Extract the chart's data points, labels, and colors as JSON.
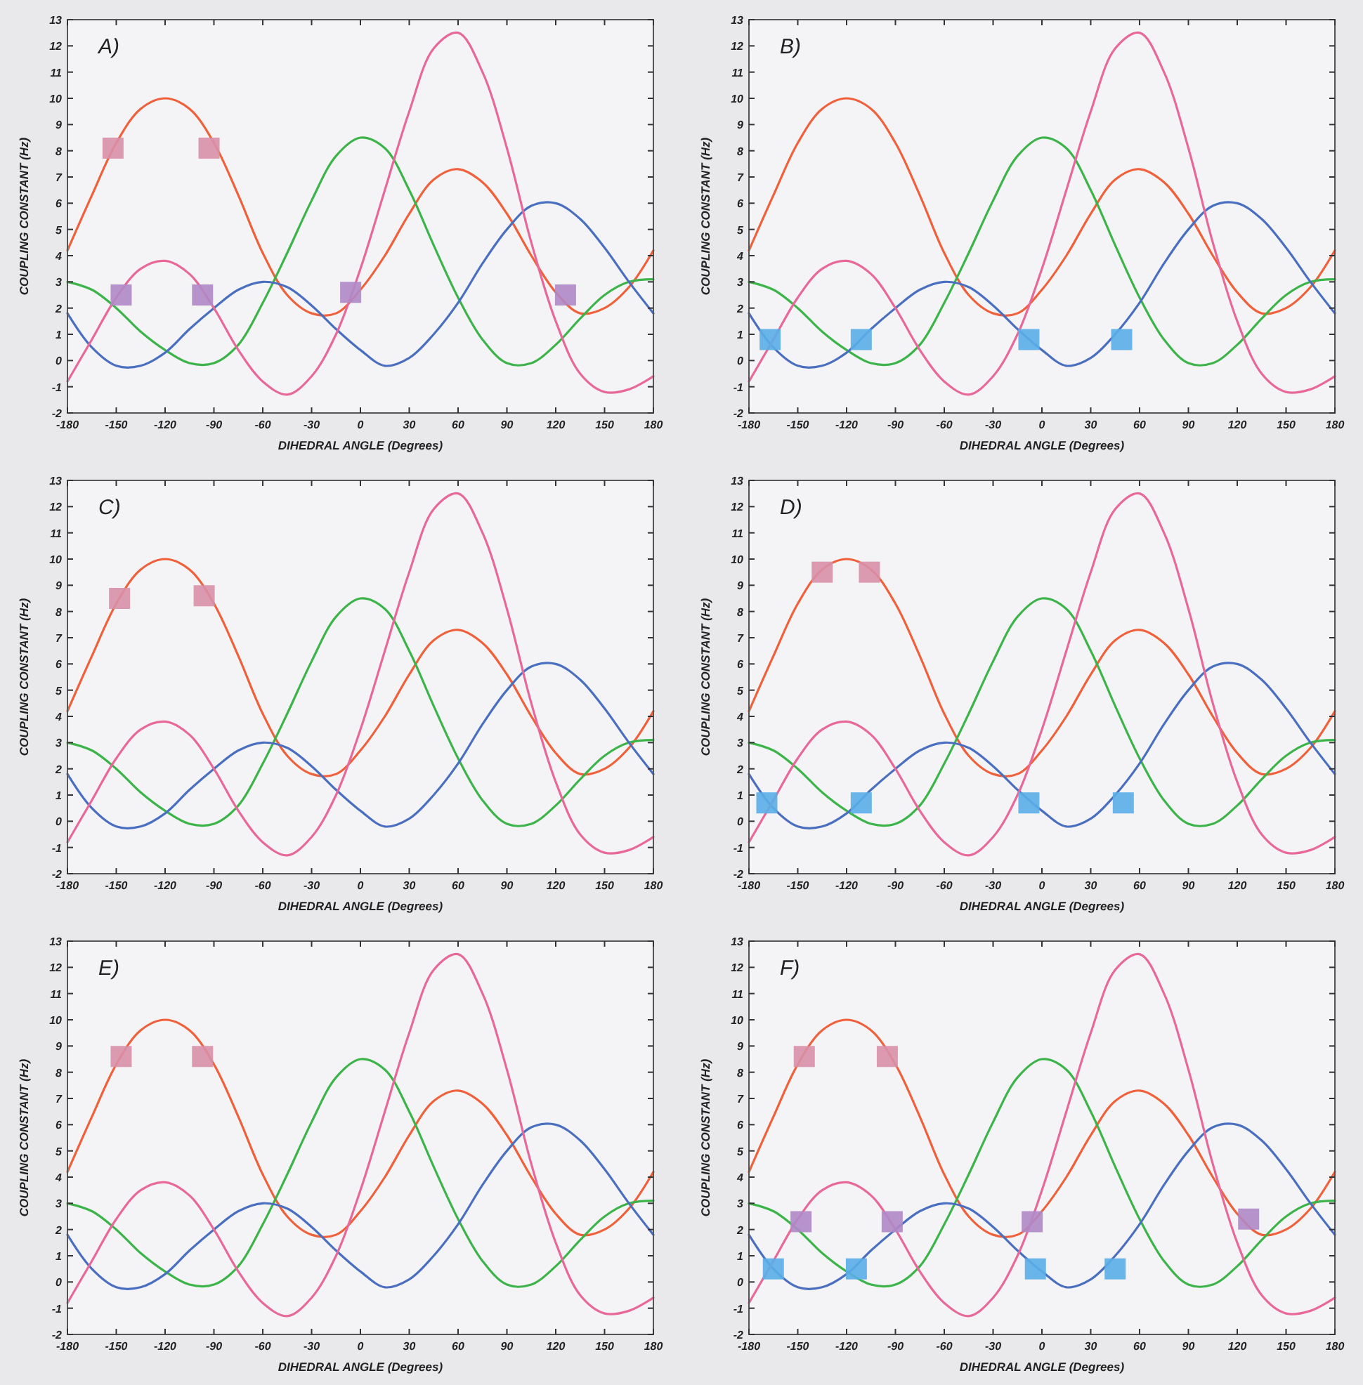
{
  "chart_data": [
    {
      "type": "line",
      "title": "A)",
      "xlabel": "DIHEDRAL ANGLE (Degrees)",
      "ylabel": "COUPLING CONSTANT (Hz)",
      "xlim": [
        -180,
        180
      ],
      "xticks": [
        -180,
        -150,
        -120,
        -90,
        -60,
        -30,
        0,
        30,
        60,
        90,
        120,
        150,
        180
      ],
      "ylim": [
        -2,
        13
      ],
      "yticks": [
        -2,
        -1,
        0,
        1,
        2,
        3,
        4,
        5,
        6,
        7,
        8,
        9,
        10,
        11,
        12,
        13
      ],
      "x": [
        -180,
        -165,
        -150,
        -135,
        -120,
        -105,
        -90,
        -75,
        -60,
        -45,
        -30,
        -15,
        0,
        15,
        30,
        45,
        60,
        75,
        90,
        105,
        120,
        135,
        150,
        165,
        180
      ],
      "series": [
        {
          "color": "#f0603a",
          "values": [
            4.2,
            6.3,
            8.3,
            9.6,
            10,
            9.6,
            8.3,
            6.3,
            4.1,
            2.5,
            1.8,
            1.8,
            2.7,
            4.0,
            5.6,
            6.9,
            7.3,
            6.8,
            5.6,
            4.0,
            2.6,
            1.8,
            2.0,
            2.8,
            4.2
          ]
        },
        {
          "color": "#3cb44a",
          "values": [
            3.0,
            2.7,
            2.0,
            1.1,
            0.4,
            -0.1,
            -0.1,
            0.6,
            2.2,
            4.1,
            6.1,
            7.8,
            8.5,
            8.1,
            6.5,
            4.4,
            2.4,
            0.8,
            -0.1,
            -0.1,
            0.6,
            1.6,
            2.5,
            3.0,
            3.1
          ]
        },
        {
          "color": "#4a6fc0",
          "values": [
            1.8,
            0.5,
            -0.2,
            -0.2,
            0.3,
            1.2,
            2.0,
            2.7,
            3.0,
            2.8,
            2.1,
            1.2,
            0.4,
            -0.2,
            0.1,
            1.0,
            2.2,
            3.7,
            5.0,
            5.9,
            6.0,
            5.4,
            4.3,
            3.0,
            1.8
          ]
        },
        {
          "color": "#e8689a",
          "values": [
            -0.8,
            0.8,
            2.4,
            3.5,
            3.8,
            3.3,
            2.0,
            0.4,
            -0.8,
            -1.3,
            -0.6,
            1.0,
            3.5,
            6.5,
            9.5,
            11.9,
            12.5,
            11.0,
            8.1,
            4.5,
            1.5,
            -0.5,
            -1.2,
            -1.1,
            -0.6
          ]
        },
        {
          "type": "scatter",
          "marker": "square",
          "color": "#d890a8",
          "x": [
            -152,
            -93
          ],
          "values": [
            8.1,
            8.1
          ]
        },
        {
          "type": "scatter",
          "marker": "square",
          "color": "#b088c8",
          "x": [
            -147,
            -97,
            -6,
            126
          ],
          "values": [
            2.5,
            2.5,
            2.6,
            2.5
          ]
        }
      ]
    },
    {
      "type": "line",
      "title": "B)",
      "xlabel": "DIHEDRAL ANGLE (Degrees)",
      "ylabel": "COUPLING CONSTANT (Hz)",
      "xlim": [
        -180,
        180
      ],
      "xticks": [
        -180,
        -150,
        -120,
        -90,
        -60,
        -30,
        0,
        30,
        60,
        90,
        120,
        150,
        180
      ],
      "ylim": [
        -2,
        13
      ],
      "yticks": [
        -2,
        -1,
        0,
        1,
        2,
        3,
        4,
        5,
        6,
        7,
        8,
        9,
        10,
        11,
        12,
        13
      ],
      "x": [
        -180,
        -165,
        -150,
        -135,
        -120,
        -105,
        -90,
        -75,
        -60,
        -45,
        -30,
        -15,
        0,
        15,
        30,
        45,
        60,
        75,
        90,
        105,
        120,
        135,
        150,
        165,
        180
      ],
      "series": [
        {
          "color": "#f0603a",
          "values": [
            4.2,
            6.3,
            8.3,
            9.6,
            10,
            9.6,
            8.3,
            6.3,
            4.1,
            2.5,
            1.8,
            1.8,
            2.7,
            4.0,
            5.6,
            6.9,
            7.3,
            6.8,
            5.6,
            4.0,
            2.6,
            1.8,
            2.0,
            2.8,
            4.2
          ]
        },
        {
          "color": "#3cb44a",
          "values": [
            3.0,
            2.7,
            2.0,
            1.1,
            0.4,
            -0.1,
            -0.1,
            0.6,
            2.2,
            4.1,
            6.1,
            7.8,
            8.5,
            8.1,
            6.5,
            4.4,
            2.4,
            0.8,
            -0.1,
            -0.1,
            0.6,
            1.6,
            2.5,
            3.0,
            3.1
          ]
        },
        {
          "color": "#4a6fc0",
          "values": [
            1.8,
            0.5,
            -0.2,
            -0.2,
            0.3,
            1.2,
            2.0,
            2.7,
            3.0,
            2.8,
            2.1,
            1.2,
            0.4,
            -0.2,
            0.1,
            1.0,
            2.2,
            3.7,
            5.0,
            5.9,
            6.0,
            5.4,
            4.3,
            3.0,
            1.8
          ]
        },
        {
          "color": "#e8689a",
          "values": [
            -0.8,
            0.8,
            2.4,
            3.5,
            3.8,
            3.3,
            2.0,
            0.4,
            -0.8,
            -1.3,
            -0.6,
            1.0,
            3.5,
            6.5,
            9.5,
            11.9,
            12.5,
            11.0,
            8.1,
            4.5,
            1.5,
            -0.5,
            -1.2,
            -1.1,
            -0.6
          ]
        },
        {
          "type": "scatter",
          "marker": "square",
          "color": "#5aaee8",
          "x": [
            -167,
            -111,
            -8,
            49
          ],
          "values": [
            0.8,
            0.8,
            0.8,
            0.8
          ]
        }
      ]
    },
    {
      "type": "line",
      "title": "C)",
      "xlabel": "DIHEDRAL ANGLE (Degrees)",
      "ylabel": "COUPLING CONSTANT (Hz)",
      "xlim": [
        -180,
        180
      ],
      "xticks": [
        -180,
        -150,
        -120,
        -90,
        -60,
        -30,
        0,
        30,
        60,
        90,
        120,
        150,
        180
      ],
      "ylim": [
        -2,
        13
      ],
      "yticks": [
        -2,
        -1,
        0,
        1,
        2,
        3,
        4,
        5,
        6,
        7,
        8,
        9,
        10,
        11,
        12,
        13
      ],
      "x": [
        -180,
        -165,
        -150,
        -135,
        -120,
        -105,
        -90,
        -75,
        -60,
        -45,
        -30,
        -15,
        0,
        15,
        30,
        45,
        60,
        75,
        90,
        105,
        120,
        135,
        150,
        165,
        180
      ],
      "series": [
        {
          "color": "#f0603a",
          "values": [
            4.2,
            6.3,
            8.3,
            9.6,
            10,
            9.6,
            8.3,
            6.3,
            4.1,
            2.5,
            1.8,
            1.8,
            2.7,
            4.0,
            5.6,
            6.9,
            7.3,
            6.8,
            5.6,
            4.0,
            2.6,
            1.8,
            2.0,
            2.8,
            4.2
          ]
        },
        {
          "color": "#3cb44a",
          "values": [
            3.0,
            2.7,
            2.0,
            1.1,
            0.4,
            -0.1,
            -0.1,
            0.6,
            2.2,
            4.1,
            6.1,
            7.8,
            8.5,
            8.1,
            6.5,
            4.4,
            2.4,
            0.8,
            -0.1,
            -0.1,
            0.6,
            1.6,
            2.5,
            3.0,
            3.1
          ]
        },
        {
          "color": "#4a6fc0",
          "values": [
            1.8,
            0.5,
            -0.2,
            -0.2,
            0.3,
            1.2,
            2.0,
            2.7,
            3.0,
            2.8,
            2.1,
            1.2,
            0.4,
            -0.2,
            0.1,
            1.0,
            2.2,
            3.7,
            5.0,
            5.9,
            6.0,
            5.4,
            4.3,
            3.0,
            1.8
          ]
        },
        {
          "color": "#e8689a",
          "values": [
            -0.8,
            0.8,
            2.4,
            3.5,
            3.8,
            3.3,
            2.0,
            0.4,
            -0.8,
            -1.3,
            -0.6,
            1.0,
            3.5,
            6.5,
            9.5,
            11.9,
            12.5,
            11.0,
            8.1,
            4.5,
            1.5,
            -0.5,
            -1.2,
            -1.1,
            -0.6
          ]
        },
        {
          "type": "scatter",
          "marker": "square",
          "color": "#d890a8",
          "x": [
            -148,
            -96
          ],
          "values": [
            8.5,
            8.6
          ]
        }
      ]
    },
    {
      "type": "line",
      "title": "D)",
      "xlabel": "DIHEDRAL ANGLE (Degrees)",
      "ylabel": "COUPLING CONSTANT (Hz)",
      "xlim": [
        -180,
        180
      ],
      "xticks": [
        -180,
        -150,
        -120,
        -90,
        -60,
        -30,
        0,
        30,
        60,
        90,
        120,
        150,
        180
      ],
      "ylim": [
        -2,
        13
      ],
      "yticks": [
        -2,
        -1,
        0,
        1,
        2,
        3,
        4,
        5,
        6,
        7,
        8,
        9,
        10,
        11,
        12,
        13
      ],
      "x": [
        -180,
        -165,
        -150,
        -135,
        -120,
        -105,
        -90,
        -75,
        -60,
        -45,
        -30,
        -15,
        0,
        15,
        30,
        45,
        60,
        75,
        90,
        105,
        120,
        135,
        150,
        165,
        180
      ],
      "series": [
        {
          "color": "#f0603a",
          "values": [
            4.2,
            6.3,
            8.3,
            9.6,
            10,
            9.6,
            8.3,
            6.3,
            4.1,
            2.5,
            1.8,
            1.8,
            2.7,
            4.0,
            5.6,
            6.9,
            7.3,
            6.8,
            5.6,
            4.0,
            2.6,
            1.8,
            2.0,
            2.8,
            4.2
          ]
        },
        {
          "color": "#3cb44a",
          "values": [
            3.0,
            2.7,
            2.0,
            1.1,
            0.4,
            -0.1,
            -0.1,
            0.6,
            2.2,
            4.1,
            6.1,
            7.8,
            8.5,
            8.1,
            6.5,
            4.4,
            2.4,
            0.8,
            -0.1,
            -0.1,
            0.6,
            1.6,
            2.5,
            3.0,
            3.1
          ]
        },
        {
          "color": "#4a6fc0",
          "values": [
            1.8,
            0.5,
            -0.2,
            -0.2,
            0.3,
            1.2,
            2.0,
            2.7,
            3.0,
            2.8,
            2.1,
            1.2,
            0.4,
            -0.2,
            0.1,
            1.0,
            2.2,
            3.7,
            5.0,
            5.9,
            6.0,
            5.4,
            4.3,
            3.0,
            1.8
          ]
        },
        {
          "color": "#e8689a",
          "values": [
            -0.8,
            0.8,
            2.4,
            3.5,
            3.8,
            3.3,
            2.0,
            0.4,
            -0.8,
            -1.3,
            -0.6,
            1.0,
            3.5,
            6.5,
            9.5,
            11.9,
            12.5,
            11.0,
            8.1,
            4.5,
            1.5,
            -0.5,
            -1.2,
            -1.1,
            -0.6
          ]
        },
        {
          "type": "scatter",
          "marker": "square",
          "color": "#d890a8",
          "x": [
            -135,
            -106
          ],
          "values": [
            9.5,
            9.5
          ]
        },
        {
          "type": "scatter",
          "marker": "square",
          "color": "#5aaee8",
          "x": [
            -169,
            -111,
            -8,
            50
          ],
          "values": [
            0.7,
            0.7,
            0.7,
            0.7
          ]
        }
      ]
    },
    {
      "type": "line",
      "title": "E)",
      "xlabel": "DIHEDRAL ANGLE (Degrees)",
      "ylabel": "COUPLING CONSTANT (Hz)",
      "xlim": [
        -180,
        180
      ],
      "xticks": [
        -180,
        -150,
        -120,
        -90,
        -60,
        -30,
        0,
        30,
        60,
        90,
        120,
        150,
        180
      ],
      "ylim": [
        -2,
        13
      ],
      "yticks": [
        -2,
        -1,
        0,
        1,
        2,
        3,
        4,
        5,
        6,
        7,
        8,
        9,
        10,
        11,
        12,
        13
      ],
      "x": [
        -180,
        -165,
        -150,
        -135,
        -120,
        -105,
        -90,
        -75,
        -60,
        -45,
        -30,
        -15,
        0,
        15,
        30,
        45,
        60,
        75,
        90,
        105,
        120,
        135,
        150,
        165,
        180
      ],
      "series": [
        {
          "color": "#f0603a",
          "values": [
            4.2,
            6.3,
            8.3,
            9.6,
            10,
            9.6,
            8.3,
            6.3,
            4.1,
            2.5,
            1.8,
            1.8,
            2.7,
            4.0,
            5.6,
            6.9,
            7.3,
            6.8,
            5.6,
            4.0,
            2.6,
            1.8,
            2.0,
            2.8,
            4.2
          ]
        },
        {
          "color": "#3cb44a",
          "values": [
            3.0,
            2.7,
            2.0,
            1.1,
            0.4,
            -0.1,
            -0.1,
            0.6,
            2.2,
            4.1,
            6.1,
            7.8,
            8.5,
            8.1,
            6.5,
            4.4,
            2.4,
            0.8,
            -0.1,
            -0.1,
            0.6,
            1.6,
            2.5,
            3.0,
            3.1
          ]
        },
        {
          "color": "#4a6fc0",
          "values": [
            1.8,
            0.5,
            -0.2,
            -0.2,
            0.3,
            1.2,
            2.0,
            2.7,
            3.0,
            2.8,
            2.1,
            1.2,
            0.4,
            -0.2,
            0.1,
            1.0,
            2.2,
            3.7,
            5.0,
            5.9,
            6.0,
            5.4,
            4.3,
            3.0,
            1.8
          ]
        },
        {
          "color": "#e8689a",
          "values": [
            -0.8,
            0.8,
            2.4,
            3.5,
            3.8,
            3.3,
            2.0,
            0.4,
            -0.8,
            -1.3,
            -0.6,
            1.0,
            3.5,
            6.5,
            9.5,
            11.9,
            12.5,
            11.0,
            8.1,
            4.5,
            1.5,
            -0.5,
            -1.2,
            -1.1,
            -0.6
          ]
        },
        {
          "type": "scatter",
          "marker": "square",
          "color": "#d890a8",
          "x": [
            -147,
            -97
          ],
          "values": [
            8.6,
            8.6
          ]
        }
      ]
    },
    {
      "type": "line",
      "title": "F)",
      "xlabel": "DIHEDRAL ANGLE (Degrees)",
      "ylabel": "COUPLING CONSTANT (Hz)",
      "xlim": [
        -180,
        180
      ],
      "xticks": [
        -180,
        -150,
        -120,
        -90,
        -60,
        -30,
        0,
        30,
        60,
        90,
        120,
        150,
        180
      ],
      "ylim": [
        -2,
        13
      ],
      "yticks": [
        -2,
        -1,
        0,
        1,
        2,
        3,
        4,
        5,
        6,
        7,
        8,
        9,
        10,
        11,
        12,
        13
      ],
      "x": [
        -180,
        -165,
        -150,
        -135,
        -120,
        -105,
        -90,
        -75,
        -60,
        -45,
        -30,
        -15,
        0,
        15,
        30,
        45,
        60,
        75,
        90,
        105,
        120,
        135,
        150,
        165,
        180
      ],
      "series": [
        {
          "color": "#f0603a",
          "values": [
            4.2,
            6.3,
            8.3,
            9.6,
            10,
            9.6,
            8.3,
            6.3,
            4.1,
            2.5,
            1.8,
            1.8,
            2.7,
            4.0,
            5.6,
            6.9,
            7.3,
            6.8,
            5.6,
            4.0,
            2.6,
            1.8,
            2.0,
            2.8,
            4.2
          ]
        },
        {
          "color": "#3cb44a",
          "values": [
            3.0,
            2.7,
            2.0,
            1.1,
            0.4,
            -0.1,
            -0.1,
            0.6,
            2.2,
            4.1,
            6.1,
            7.8,
            8.5,
            8.1,
            6.5,
            4.4,
            2.4,
            0.8,
            -0.1,
            -0.1,
            0.6,
            1.6,
            2.5,
            3.0,
            3.1
          ]
        },
        {
          "color": "#4a6fc0",
          "values": [
            1.8,
            0.5,
            -0.2,
            -0.2,
            0.3,
            1.2,
            2.0,
            2.7,
            3.0,
            2.8,
            2.1,
            1.2,
            0.4,
            -0.2,
            0.1,
            1.0,
            2.2,
            3.7,
            5.0,
            5.9,
            6.0,
            5.4,
            4.3,
            3.0,
            1.8
          ]
        },
        {
          "color": "#e8689a",
          "values": [
            -0.8,
            0.8,
            2.4,
            3.5,
            3.8,
            3.3,
            2.0,
            0.4,
            -0.8,
            -1.3,
            -0.6,
            1.0,
            3.5,
            6.5,
            9.5,
            11.9,
            12.5,
            11.0,
            8.1,
            4.5,
            1.5,
            -0.5,
            -1.2,
            -1.1,
            -0.6
          ]
        },
        {
          "type": "scatter",
          "marker": "square",
          "color": "#d890a8",
          "x": [
            -146,
            -95
          ],
          "values": [
            8.6,
            8.6
          ]
        },
        {
          "type": "scatter",
          "marker": "square",
          "color": "#b088c8",
          "x": [
            -148,
            -92,
            -6,
            127
          ],
          "values": [
            2.3,
            2.3,
            2.3,
            2.4
          ]
        },
        {
          "type": "scatter",
          "marker": "square",
          "color": "#5aaee8",
          "x": [
            -165,
            -114,
            -4,
            45
          ],
          "values": [
            0.5,
            0.5,
            0.5,
            0.5
          ]
        }
      ]
    }
  ]
}
